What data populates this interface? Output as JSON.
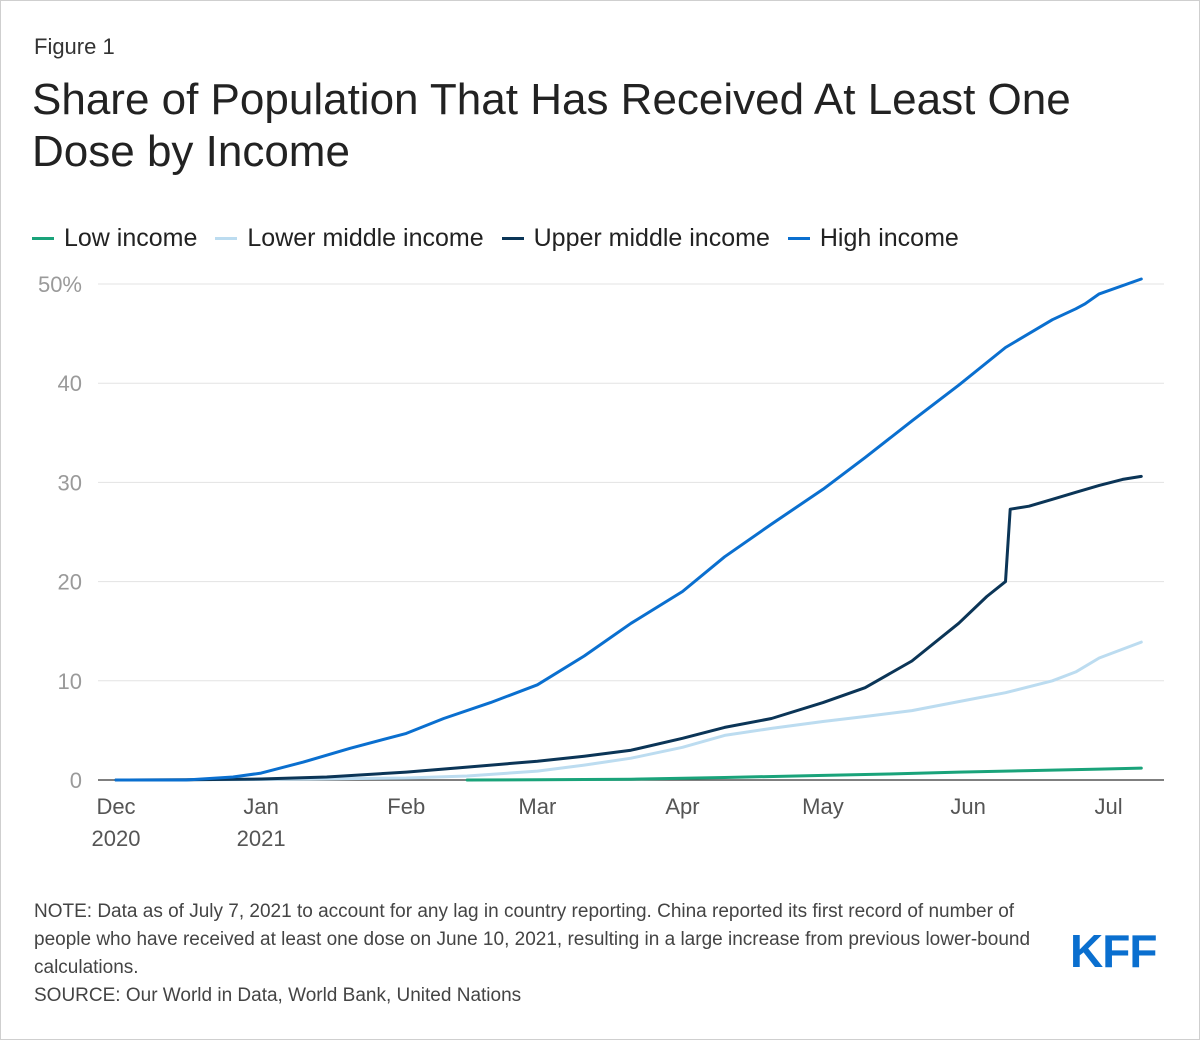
{
  "figure_label": "Figure 1",
  "title": "Share of Population That Has Received At Least One Dose by Income",
  "legend": [
    {
      "label": "Low income",
      "color": "#1aa37a"
    },
    {
      "label": "Lower middle income",
      "color": "#bcdcf0"
    },
    {
      "label": "Upper middle income",
      "color": "#0b3557"
    },
    {
      "label": "High income",
      "color": "#0a6fcf"
    }
  ],
  "note_line": "NOTE: Data as of July 7, 2021 to account for any lag in country reporting. China reported its first record of number of people who have received at least one dose on June 10, 2021, resulting in a large increase from previous lower-bound calculations.",
  "source_line": "SOURCE: Our World in Data, World Bank, United Nations",
  "logo": "KFF",
  "chart_data": {
    "type": "line",
    "title": "Share of Population That Has Received At Least One Dose by Income",
    "xlabel": "",
    "ylabel": "",
    "ylim": [
      0,
      50
    ],
    "y_ticks": [
      0,
      10,
      20,
      30,
      40,
      50
    ],
    "y_tick_labels": [
      "0",
      "10",
      "20",
      "30",
      "40",
      "50%"
    ],
    "x_range_days": [
      0,
      220
    ],
    "x_ticks": [
      {
        "day": 0,
        "label": "Dec",
        "sublabel": "2020"
      },
      {
        "day": 31,
        "label": "Jan",
        "sublabel": "2021"
      },
      {
        "day": 62,
        "label": "Feb",
        "sublabel": ""
      },
      {
        "day": 90,
        "label": "Mar",
        "sublabel": ""
      },
      {
        "day": 121,
        "label": "Apr",
        "sublabel": ""
      },
      {
        "day": 151,
        "label": "May",
        "sublabel": ""
      },
      {
        "day": 182,
        "label": "Jun",
        "sublabel": ""
      },
      {
        "day": 212,
        "label": "Jul",
        "sublabel": ""
      }
    ],
    "series": [
      {
        "name": "Low income",
        "color": "#1aa37a",
        "points": [
          [
            75,
            0
          ],
          [
            90,
            0.02
          ],
          [
            110,
            0.08
          ],
          [
            130,
            0.25
          ],
          [
            150,
            0.45
          ],
          [
            165,
            0.6
          ],
          [
            180,
            0.8
          ],
          [
            195,
            0.95
          ],
          [
            210,
            1.1
          ],
          [
            219,
            1.2
          ]
        ]
      },
      {
        "name": "Lower middle income",
        "color": "#bcdcf0",
        "points": [
          [
            0,
            0
          ],
          [
            31,
            0.05
          ],
          [
            62,
            0.2
          ],
          [
            75,
            0.4
          ],
          [
            90,
            0.9
          ],
          [
            100,
            1.5
          ],
          [
            110,
            2.2
          ],
          [
            121,
            3.3
          ],
          [
            130,
            4.5
          ],
          [
            140,
            5.2
          ],
          [
            151,
            5.9
          ],
          [
            160,
            6.4
          ],
          [
            170,
            7.0
          ],
          [
            180,
            7.9
          ],
          [
            190,
            8.8
          ],
          [
            200,
            10.0
          ],
          [
            205,
            10.9
          ],
          [
            210,
            12.3
          ],
          [
            219,
            13.9
          ]
        ]
      },
      {
        "name": "Upper middle income",
        "color": "#0b3557",
        "points": [
          [
            0,
            0
          ],
          [
            15,
            0.02
          ],
          [
            31,
            0.1
          ],
          [
            45,
            0.3
          ],
          [
            62,
            0.8
          ],
          [
            75,
            1.3
          ],
          [
            90,
            1.9
          ],
          [
            100,
            2.4
          ],
          [
            110,
            3.0
          ],
          [
            121,
            4.2
          ],
          [
            130,
            5.3
          ],
          [
            140,
            6.2
          ],
          [
            151,
            7.8
          ],
          [
            160,
            9.3
          ],
          [
            170,
            12.0
          ],
          [
            180,
            15.8
          ],
          [
            186,
            18.5
          ],
          [
            190,
            20.0
          ],
          [
            191,
            27.3
          ],
          [
            195,
            27.6
          ],
          [
            200,
            28.3
          ],
          [
            205,
            29.0
          ],
          [
            210,
            29.7
          ],
          [
            215,
            30.3
          ],
          [
            219,
            30.6
          ]
        ]
      },
      {
        "name": "High income",
        "color": "#0a6fcf",
        "points": [
          [
            0,
            0
          ],
          [
            15,
            0
          ],
          [
            25,
            0.3
          ],
          [
            31,
            0.7
          ],
          [
            40,
            1.8
          ],
          [
            50,
            3.2
          ],
          [
            62,
            4.7
          ],
          [
            70,
            6.2
          ],
          [
            80,
            7.8
          ],
          [
            90,
            9.6
          ],
          [
            100,
            12.5
          ],
          [
            110,
            15.8
          ],
          [
            121,
            19.0
          ],
          [
            130,
            22.5
          ],
          [
            140,
            25.8
          ],
          [
            151,
            29.3
          ],
          [
            160,
            32.5
          ],
          [
            170,
            36.2
          ],
          [
            180,
            39.8
          ],
          [
            190,
            43.6
          ],
          [
            200,
            46.4
          ],
          [
            205,
            47.5
          ],
          [
            207,
            48.0
          ],
          [
            210,
            49.0
          ],
          [
            219,
            50.5
          ]
        ]
      }
    ]
  }
}
